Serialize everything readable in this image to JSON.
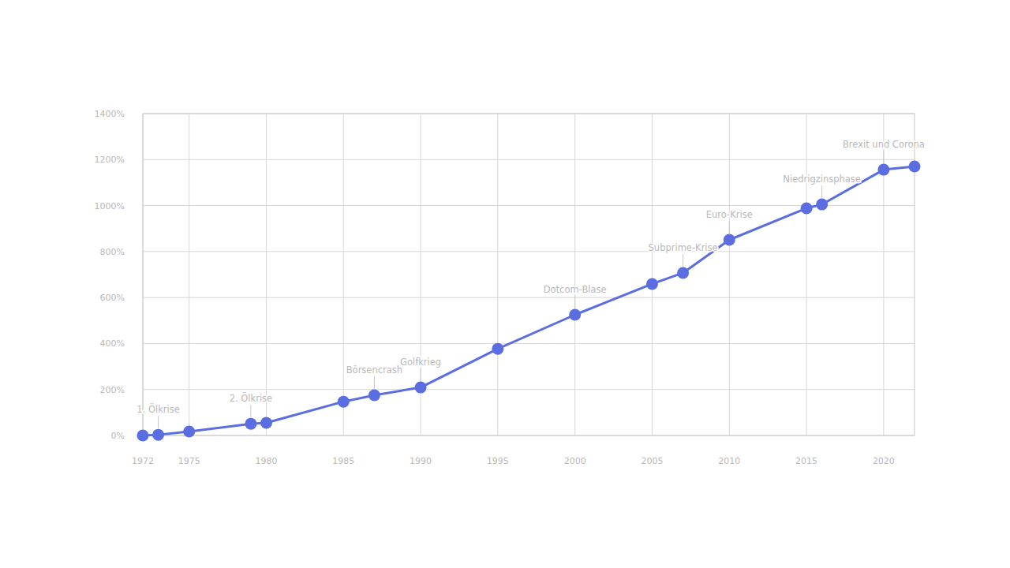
{
  "chart_data": {
    "type": "line",
    "x": [
      1972,
      1973,
      1975,
      1979,
      1980,
      1985,
      1987,
      1990,
      1995,
      2000,
      2005,
      2007,
      2010,
      2015,
      2016,
      2020,
      2022
    ],
    "values": [
      0,
      3,
      17,
      51,
      55,
      147,
      175,
      209,
      377,
      525,
      659,
      707,
      851,
      988,
      1005,
      1156,
      1170
    ],
    "color": "#5b6ee1",
    "marker": "circle",
    "xlim": [
      1972,
      2022
    ],
    "xticks": [
      1972,
      1975,
      1980,
      1985,
      1990,
      1995,
      2000,
      2005,
      2010,
      2015,
      2020
    ],
    "ylim": [
      0,
      1400
    ],
    "yticks": [
      {
        "value": 0,
        "label": "0%"
      },
      {
        "value": 200,
        "label": "200%"
      },
      {
        "value": 400,
        "label": "400%"
      },
      {
        "value": 600,
        "label": "600%"
      },
      {
        "value": 800,
        "label": "800%"
      },
      {
        "value": 1000,
        "label": "1000%"
      },
      {
        "value": 1200,
        "label": "1200%"
      },
      {
        "value": 1400,
        "label": "1400%"
      }
    ],
    "grid": true,
    "annotations": [
      {
        "text": "1. Ölkrise",
        "x": 1973
      },
      {
        "text": "2. Ölkrise",
        "x": 1979
      },
      {
        "text": "Börsencrash",
        "x": 1987
      },
      {
        "text": "Golfkrieg",
        "x": 1990
      },
      {
        "text": "Dotcom-Blase",
        "x": 2000
      },
      {
        "text": "Subprime-Krise",
        "x": 2007
      },
      {
        "text": "Euro-Krise",
        "x": 2010
      },
      {
        "text": "Niedrigzinsphase",
        "x": 2016
      },
      {
        "text": "Brexit und Corona",
        "x": 2020
      }
    ]
  }
}
